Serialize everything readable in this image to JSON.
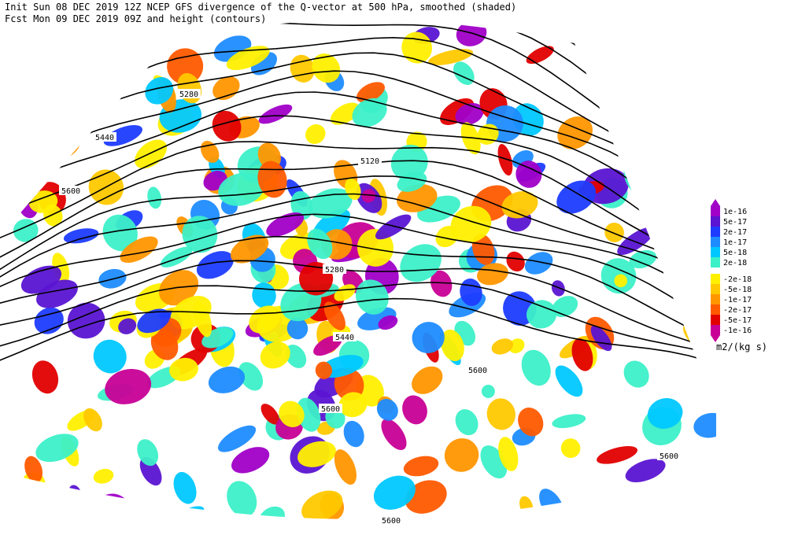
{
  "header": {
    "line1": "Init  Sun 08 DEC 2019 12Z  NCEP GFS divergence of the Q-vector at 500 hPa, smoothed (shaded)",
    "line2": "Fcst Mon 09 DEC 2019 09Z  and height (contours)"
  },
  "colorbar": {
    "labels": [
      "1e-16",
      "5e-17",
      "2e-17",
      "1e-17",
      "5e-18",
      "2e-18",
      "-2e-18",
      "-5e-18",
      "-1e-17",
      "-2e-17",
      "-5e-17",
      "-1e-16"
    ],
    "colors": [
      "#a000c8",
      "#5a14d2",
      "#1e3cff",
      "#1e8cff",
      "#00c8ff",
      "#3cf0c8",
      "#fff000",
      "#ffc800",
      "#ff9600",
      "#ff5a00",
      "#e10000",
      "#c80096"
    ],
    "unit": "m2/(kg s)"
  },
  "contour_labels": [
    "5280",
    "5440",
    "5600",
    "5120",
    "5280",
    "5440",
    "5600",
    "5600",
    "5600",
    "5600"
  ]
}
